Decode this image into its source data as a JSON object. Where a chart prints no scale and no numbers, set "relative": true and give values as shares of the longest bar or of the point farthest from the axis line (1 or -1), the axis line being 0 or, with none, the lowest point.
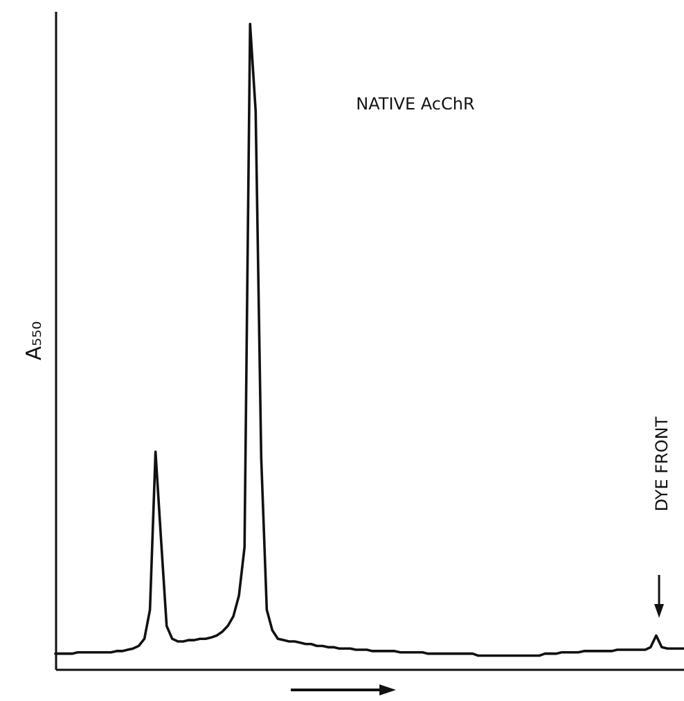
{
  "chart_data": {
    "type": "line",
    "relative": true,
    "ylabel": "A₅₅₀",
    "color": "#111111",
    "annotations": [
      "NATIVE AcChR",
      "DYE FRONT"
    ],
    "categories": [
      null,
      null,
      null,
      null,
      null,
      null,
      null,
      null,
      null,
      null,
      null,
      null,
      null,
      null,
      null,
      null,
      null,
      null,
      null,
      null,
      null,
      null,
      null,
      null,
      null,
      null,
      null,
      null,
      null,
      null,
      null,
      null,
      null,
      null,
      null,
      null,
      null,
      null,
      null,
      null,
      null,
      null,
      null,
      null,
      null,
      null,
      null,
      null,
      null,
      null,
      null,
      null,
      null,
      null,
      null,
      null,
      null,
      null,
      null,
      null,
      null,
      null,
      null,
      null,
      null,
      null,
      null,
      null,
      null,
      null,
      null,
      null,
      null,
      null,
      null,
      null,
      null,
      null,
      null,
      null,
      null,
      null,
      null,
      null,
      null,
      null,
      null,
      null,
      null,
      null,
      null,
      null,
      null,
      null,
      null,
      null,
      null,
      null,
      null,
      null,
      null,
      null,
      null,
      null,
      null,
      null,
      null,
      null,
      null,
      null,
      null,
      null,
      null,
      null
    ],
    "values": [
      0.024,
      0.024,
      0.024,
      0.024,
      0.026,
      0.026,
      0.026,
      0.026,
      0.026,
      0.026,
      0.026,
      0.028,
      0.028,
      0.03,
      0.032,
      0.036,
      0.047,
      0.092,
      0.337,
      0.2,
      0.067,
      0.047,
      0.043,
      0.043,
      0.045,
      0.045,
      0.047,
      0.047,
      0.049,
      0.052,
      0.058,
      0.067,
      0.082,
      0.114,
      0.189,
      1,
      0.865,
      0.328,
      0.092,
      0.06,
      0.047,
      0.045,
      0.043,
      0.043,
      0.041,
      0.039,
      0.039,
      0.036,
      0.036,
      0.034,
      0.034,
      0.032,
      0.032,
      0.032,
      0.03,
      0.03,
      0.03,
      0.028,
      0.028,
      0.028,
      0.028,
      0.028,
      0.026,
      0.026,
      0.026,
      0.026,
      0.026,
      0.024,
      0.024,
      0.024,
      0.024,
      0.024,
      0.024,
      0.024,
      0.024,
      0.024,
      0.021,
      0.021,
      0.021,
      0.021,
      0.021,
      0.021,
      0.021,
      0.021,
      0.021,
      0.021,
      0.021,
      0.021,
      0.024,
      0.024,
      0.024,
      0.026,
      0.026,
      0.026,
      0.026,
      0.028,
      0.028,
      0.028,
      0.028,
      0.028,
      0.028,
      0.03,
      0.03,
      0.03,
      0.03,
      0.03,
      0.03,
      0.034,
      0.052,
      0.034,
      0.032,
      0.032,
      0.032,
      0.032
    ]
  }
}
